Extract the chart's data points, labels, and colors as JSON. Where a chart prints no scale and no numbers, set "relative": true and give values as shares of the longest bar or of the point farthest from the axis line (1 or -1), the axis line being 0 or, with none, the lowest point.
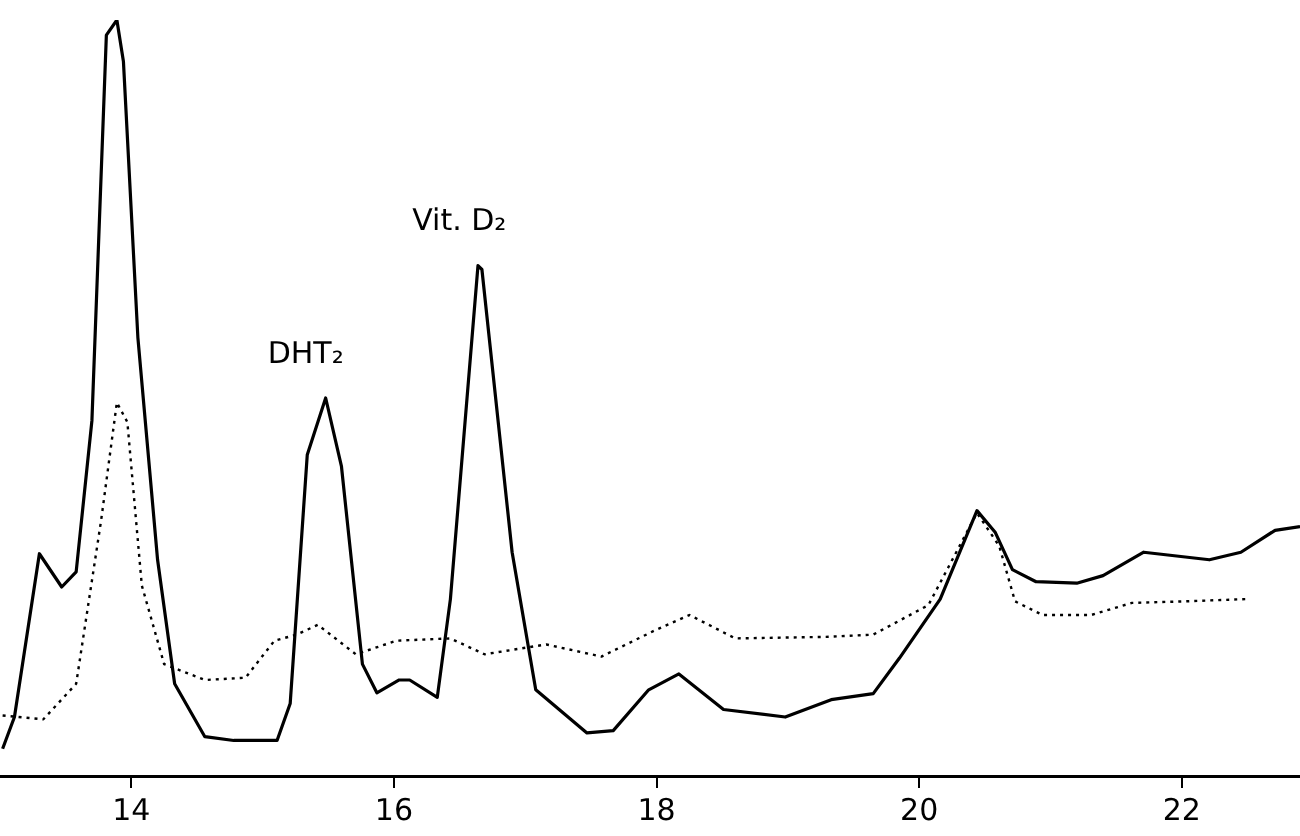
{
  "chart_data": {
    "type": "line",
    "relative": true,
    "xlim": [
      13.0,
      22.9
    ],
    "xticks": [
      14,
      16,
      18,
      20,
      22
    ],
    "grid": false,
    "legend": false,
    "marker": "none",
    "annotations": [
      {
        "text": "DHT₂",
        "x": 15.48,
        "y": 0.5
      },
      {
        "text": "Vit. D₂",
        "x": 16.65,
        "y": 0.675
      }
    ],
    "series": [
      {
        "color": "#000000",
        "line_style": "solid",
        "x": [
          13.02,
          13.11,
          13.3,
          13.47,
          13.58,
          13.7,
          13.81,
          13.89,
          13.94,
          14.05,
          14.2,
          14.33,
          14.56,
          14.78,
          15.11,
          15.21,
          15.34,
          15.48,
          15.6,
          15.76,
          15.87,
          16.04,
          16.12,
          16.33,
          16.43,
          16.64,
          16.67,
          16.9,
          17.08,
          17.47,
          17.67,
          17.94,
          18.17,
          18.51,
          18.98,
          19.33,
          19.65,
          19.85,
          20.16,
          20.44,
          20.58,
          20.71,
          20.89,
          21.2,
          21.4,
          21.71,
          22.21,
          22.45,
          22.71,
          22.9
        ],
        "values": [
          0.036,
          0.078,
          0.294,
          0.25,
          0.27,
          0.47,
          0.98,
          1,
          0.945,
          0.58,
          0.286,
          0.122,
          0.052,
          0.047,
          0.047,
          0.096,
          0.425,
          0.5,
          0.41,
          0.148,
          0.11,
          0.127,
          0.127,
          0.104,
          0.234,
          0.675,
          0.67,
          0.296,
          0.114,
          0.057,
          0.06,
          0.114,
          0.135,
          0.088,
          0.078,
          0.101,
          0.109,
          0.156,
          0.234,
          0.351,
          0.322,
          0.273,
          0.257,
          0.255,
          0.265,
          0.296,
          0.286,
          0.296,
          0.325,
          0.33
        ]
      },
      {
        "color": "#000000",
        "line_style": "dotted",
        "x": [
          13.02,
          13.33,
          13.58,
          13.77,
          13.89,
          13.97,
          14.08,
          14.25,
          14.56,
          14.87,
          15.09,
          15.26,
          15.42,
          15.71,
          16.02,
          16.43,
          16.69,
          17.16,
          17.58,
          17.98,
          18.25,
          18.6,
          19.29,
          19.65,
          20.07,
          20.44,
          20.61,
          20.73,
          20.94,
          21.31,
          21.62,
          22.02,
          22.49
        ],
        "values": [
          0.08,
          0.075,
          0.122,
          0.338,
          0.494,
          0.468,
          0.252,
          0.148,
          0.127,
          0.13,
          0.179,
          0.187,
          0.2,
          0.161,
          0.179,
          0.182,
          0.161,
          0.174,
          0.158,
          0.192,
          0.213,
          0.182,
          0.184,
          0.187,
          0.226,
          0.348,
          0.304,
          0.231,
          0.213,
          0.213,
          0.229,
          0.231,
          0.234
        ]
      }
    ]
  }
}
